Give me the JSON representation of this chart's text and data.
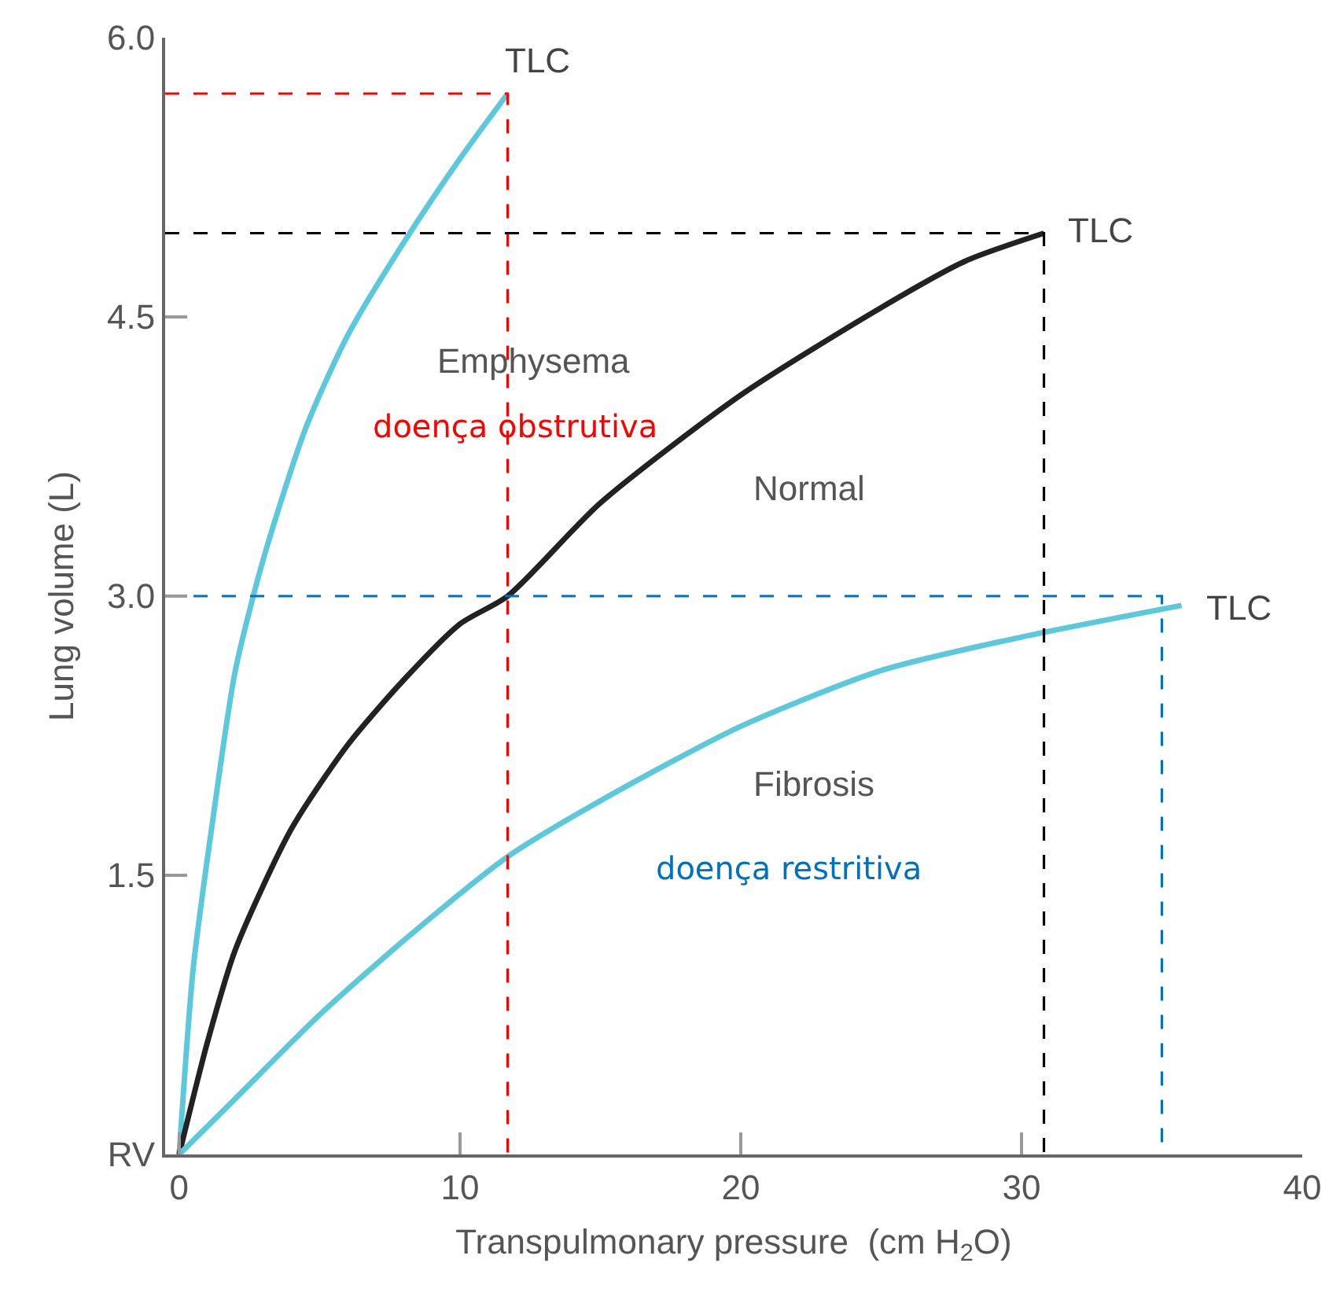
{
  "chart_data": {
    "type": "line",
    "xlabel": "Transpulmonary pressure  (cm H$_{2}$O)",
    "ylabel": "Lung volume (L)",
    "xlim": [
      -0.5,
      40
    ],
    "xticks": [
      0,
      10,
      20,
      30,
      40
    ],
    "ylim": [
      0,
      6.0
    ],
    "yticks": [
      {
        "value": 0,
        "label": "RV"
      },
      1.5,
      {
        "value": 3,
        "label": "3.0"
      },
      4.5,
      {
        "value": 6,
        "label": "6.0"
      }
    ],
    "marker": "none",
    "series": [
      {
        "color": "#5bc8dc",
        "line_style": "solid",
        "x": [
          0,
          0.5,
          1.2,
          2,
          3,
          4.5,
          6,
          8,
          10,
          11.7
        ],
        "values": [
          0,
          1.0,
          1.8,
          2.6,
          3.2,
          3.9,
          4.4,
          4.9,
          5.35,
          5.7
        ]
      },
      {
        "color": "#222222",
        "line_style": "solid",
        "x": [
          0,
          1,
          2,
          4,
          6,
          8,
          10,
          11.7,
          15,
          20,
          25,
          28,
          30.8
        ],
        "values": [
          0,
          0.6,
          1.1,
          1.75,
          2.2,
          2.55,
          2.85,
          3.0,
          3.5,
          4.08,
          4.55,
          4.8,
          4.95
        ]
      },
      {
        "color": "#5bc8dc",
        "line_style": "solid",
        "x": [
          0,
          2,
          5,
          8,
          11.7,
          15,
          20,
          25,
          30,
          35.7
        ],
        "values": [
          0,
          0.3,
          0.75,
          1.15,
          1.6,
          1.9,
          2.3,
          2.6,
          2.78,
          2.95
        ]
      },
      {
        "color": "#ff0000",
        "line_style": "dashed",
        "x": [
          -0.5,
          11.7,
          11.7
        ],
        "values": [
          5.7,
          5.7,
          0
        ]
      },
      {
        "color": "#000000",
        "line_style": "dashed",
        "x": [
          -0.5,
          30.8,
          30.8
        ],
        "values": [
          4.95,
          4.95,
          0
        ]
      },
      {
        "color": "#0070c0",
        "line_style": "dashed",
        "x": [
          -0.5,
          35,
          35
        ],
        "values": [
          3.0,
          3.0,
          0
        ]
      }
    ],
    "annotations": [
      "TLC",
      "TLC",
      "TLC",
      "Emphysema",
      "doença obstrutiva",
      "Normal",
      "Fibrosis",
      "doença restritiva"
    ]
  }
}
